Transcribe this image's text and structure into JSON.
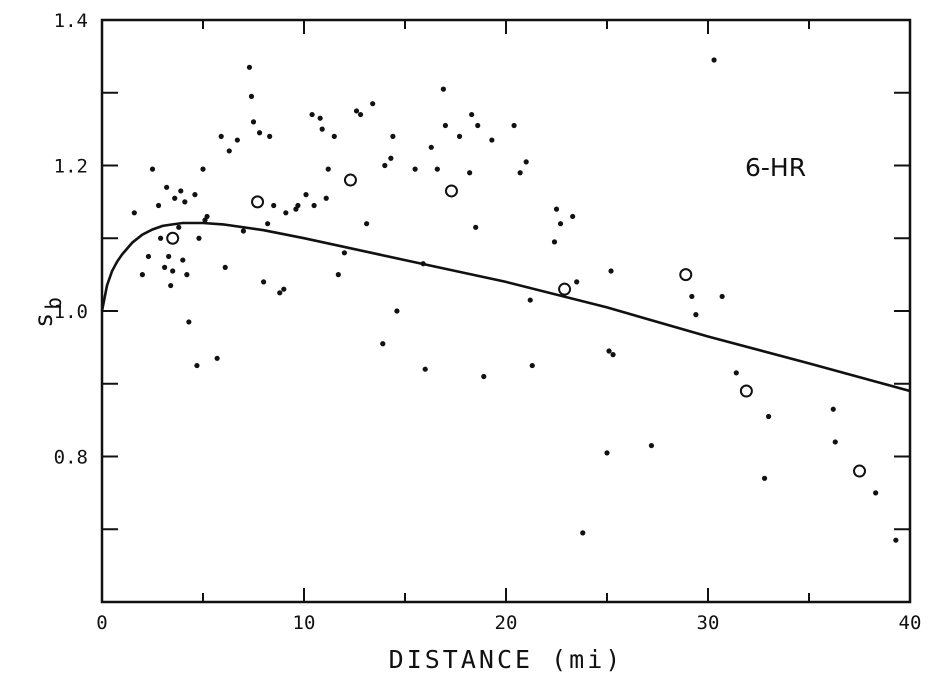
{
  "chart_data": {
    "type": "scatter",
    "title": "",
    "annotation": "6-HR",
    "xlabel": "DISTANCE (mi)",
    "ylabel_main": "s",
    "ylabel_sub": "b",
    "xlim": [
      0,
      40
    ],
    "ylim": [
      0.6,
      1.4
    ],
    "x_ticks": [
      0,
      10,
      20,
      30,
      40
    ],
    "x_tick_labels": [
      "0",
      "10",
      "20",
      "30",
      "40"
    ],
    "x_minor_ticks": [
      5,
      15,
      25,
      35
    ],
    "y_ticks": [
      0.8,
      1.0,
      1.2,
      1.4
    ],
    "y_tick_labels": [
      "0.8",
      "1.0",
      "1.2",
      "1.4"
    ],
    "y_minor_ticks": [
      0.7,
      0.9,
      1.1,
      1.3
    ],
    "grid": false,
    "series": [
      {
        "marker": "dot",
        "points": [
          [
            1.6,
            1.135
          ],
          [
            2.0,
            1.05
          ],
          [
            2.3,
            1.075
          ],
          [
            2.5,
            1.195
          ],
          [
            2.8,
            1.145
          ],
          [
            2.9,
            1.1
          ],
          [
            3.1,
            1.06
          ],
          [
            3.2,
            1.17
          ],
          [
            3.3,
            1.075
          ],
          [
            3.4,
            1.035
          ],
          [
            3.5,
            1.055
          ],
          [
            3.6,
            1.155
          ],
          [
            3.8,
            1.115
          ],
          [
            3.9,
            1.165
          ],
          [
            4.0,
            1.07
          ],
          [
            4.1,
            1.15
          ],
          [
            4.2,
            1.05
          ],
          [
            4.3,
            0.985
          ],
          [
            4.6,
            1.16
          ],
          [
            4.7,
            0.925
          ],
          [
            4.8,
            1.1
          ],
          [
            5.0,
            1.195
          ],
          [
            5.1,
            1.125
          ],
          [
            5.2,
            1.13
          ],
          [
            5.7,
            0.935
          ],
          [
            5.9,
            1.24
          ],
          [
            6.1,
            1.06
          ],
          [
            6.3,
            1.22
          ],
          [
            6.7,
            1.235
          ],
          [
            7.0,
            1.11
          ],
          [
            7.3,
            1.335
          ],
          [
            7.4,
            1.295
          ],
          [
            7.5,
            1.26
          ],
          [
            7.8,
            1.245
          ],
          [
            8.0,
            1.04
          ],
          [
            8.2,
            1.12
          ],
          [
            8.3,
            1.24
          ],
          [
            8.5,
            1.145
          ],
          [
            8.8,
            1.025
          ],
          [
            9.0,
            1.03
          ],
          [
            9.1,
            1.135
          ],
          [
            9.6,
            1.14
          ],
          [
            9.7,
            1.145
          ],
          [
            10.1,
            1.16
          ],
          [
            10.4,
            1.27
          ],
          [
            10.5,
            1.145
          ],
          [
            10.8,
            1.265
          ],
          [
            10.9,
            1.25
          ],
          [
            11.1,
            1.155
          ],
          [
            11.2,
            1.195
          ],
          [
            11.5,
            1.24
          ],
          [
            11.7,
            1.05
          ],
          [
            12.0,
            1.08
          ],
          [
            12.6,
            1.275
          ],
          [
            12.8,
            1.27
          ],
          [
            13.1,
            1.12
          ],
          [
            13.4,
            1.285
          ],
          [
            13.9,
            0.955
          ],
          [
            14.0,
            1.2
          ],
          [
            14.3,
            1.21
          ],
          [
            14.4,
            1.24
          ],
          [
            14.6,
            1.0
          ],
          [
            15.5,
            1.195
          ],
          [
            15.9,
            1.065
          ],
          [
            16.0,
            0.92
          ],
          [
            16.3,
            1.225
          ],
          [
            16.6,
            1.195
          ],
          [
            16.9,
            1.305
          ],
          [
            17.0,
            1.255
          ],
          [
            17.7,
            1.24
          ],
          [
            18.2,
            1.19
          ],
          [
            18.3,
            1.27
          ],
          [
            18.5,
            1.115
          ],
          [
            18.6,
            1.255
          ],
          [
            18.9,
            0.91
          ],
          [
            19.3,
            1.235
          ],
          [
            20.4,
            1.255
          ],
          [
            20.7,
            1.19
          ],
          [
            21.0,
            1.205
          ],
          [
            21.2,
            1.015
          ],
          [
            21.3,
            0.925
          ],
          [
            22.4,
            1.095
          ],
          [
            22.5,
            1.14
          ],
          [
            22.7,
            1.12
          ],
          [
            23.3,
            1.13
          ],
          [
            23.5,
            1.04
          ],
          [
            23.8,
            0.695
          ],
          [
            25.0,
            0.805
          ],
          [
            25.1,
            0.945
          ],
          [
            25.2,
            1.055
          ],
          [
            25.3,
            0.94
          ],
          [
            27.2,
            0.815
          ],
          [
            29.2,
            1.02
          ],
          [
            29.4,
            0.995
          ],
          [
            30.3,
            1.345
          ],
          [
            30.7,
            1.02
          ],
          [
            31.4,
            0.915
          ],
          [
            32.8,
            0.77
          ],
          [
            33.0,
            0.855
          ],
          [
            36.2,
            0.865
          ],
          [
            36.3,
            0.82
          ],
          [
            38.3,
            0.75
          ],
          [
            39.3,
            0.685
          ]
        ]
      },
      {
        "marker": "open-circle",
        "points": [
          [
            3.5,
            1.1
          ],
          [
            7.7,
            1.15
          ],
          [
            12.3,
            1.18
          ],
          [
            17.3,
            1.165
          ],
          [
            22.9,
            1.03
          ],
          [
            28.9,
            1.05
          ],
          [
            31.9,
            0.89
          ],
          [
            37.5,
            0.78
          ]
        ]
      },
      {
        "marker": "line",
        "points": [
          [
            0.0,
            1.0
          ],
          [
            0.25,
            1.035
          ],
          [
            0.5,
            1.055
          ],
          [
            0.75,
            1.068
          ],
          [
            1.0,
            1.078
          ],
          [
            1.5,
            1.094
          ],
          [
            2.0,
            1.105
          ],
          [
            2.5,
            1.112
          ],
          [
            3.0,
            1.117
          ],
          [
            3.5,
            1.119
          ],
          [
            4.0,
            1.121
          ],
          [
            5.0,
            1.121
          ],
          [
            6.0,
            1.119
          ],
          [
            8.0,
            1.111
          ],
          [
            10.0,
            1.1
          ],
          [
            15.0,
            1.07
          ],
          [
            20.0,
            1.04
          ],
          [
            25.0,
            1.005
          ],
          [
            30.0,
            0.965
          ],
          [
            35.0,
            0.928
          ],
          [
            40.0,
            0.89
          ]
        ]
      }
    ]
  }
}
